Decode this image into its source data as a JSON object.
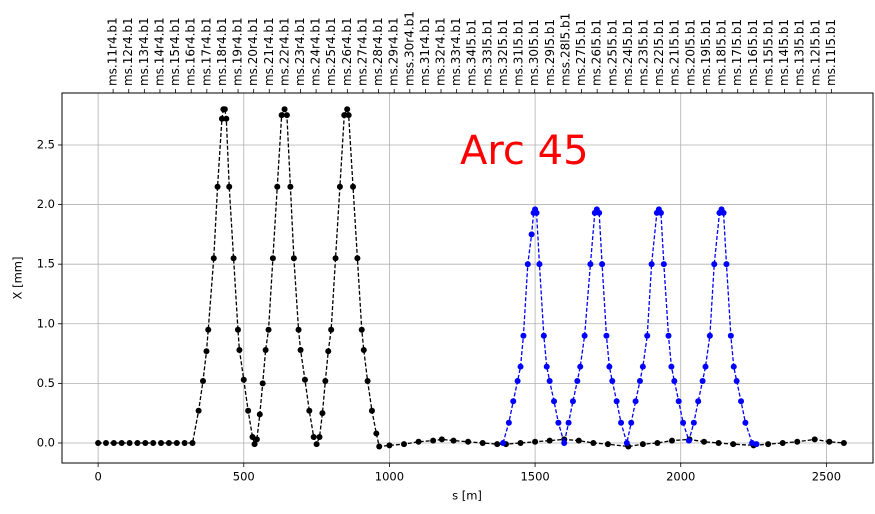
{
  "chart_data": {
    "type": "line",
    "xlabel": "s [m]",
    "ylabel": "X [mm]",
    "annotations": [
      {
        "text": "Arc 45",
        "color": "#ff0000"
      }
    ],
    "xlim": [
      -124,
      2660
    ],
    "ylim": [
      -0.168,
      2.936
    ],
    "grid": true,
    "xticks": [
      0,
      500,
      1000,
      1500,
      2000,
      2500
    ],
    "yticks": [
      {
        "value": 0,
        "label": "0.0"
      },
      {
        "value": 0.5,
        "label": "0.5"
      },
      {
        "value": 1,
        "label": "1.0"
      },
      {
        "value": 1.5,
        "label": "1.5"
      },
      {
        "value": 2,
        "label": "2.0"
      },
      {
        "value": 2.5,
        "label": "2.5"
      }
    ],
    "x2ticks": [
      {
        "value": 51.5,
        "label": "ms.11r4.b1"
      },
      {
        "value": 105.1,
        "label": "ms.12r4.b1"
      },
      {
        "value": 158.7,
        "label": "ms.13r4.b1"
      },
      {
        "value": 212.3,
        "label": "ms.14r4.b1"
      },
      {
        "value": 265.9,
        "label": "ms.15r4.b1"
      },
      {
        "value": 319.5,
        "label": "ms.16r4.b1"
      },
      {
        "value": 373.1,
        "label": "ms.17r4.b1"
      },
      {
        "value": 426.7,
        "label": "ms.18r4.b1"
      },
      {
        "value": 480.3,
        "label": "ms.19r4.b1"
      },
      {
        "value": 533.9,
        "label": "ms.20r4.b1"
      },
      {
        "value": 587.5,
        "label": "ms.21r4.b1"
      },
      {
        "value": 641.1,
        "label": "ms.22r4.b1"
      },
      {
        "value": 694.7,
        "label": "ms.23r4.b1"
      },
      {
        "value": 748.3,
        "label": "ms.24r4.b1"
      },
      {
        "value": 801.9,
        "label": "ms.25r4.b1"
      },
      {
        "value": 855.5,
        "label": "ms.26r4.b1"
      },
      {
        "value": 909.1,
        "label": "ms.27r4.b1"
      },
      {
        "value": 962.7,
        "label": "ms.28r4.b1"
      },
      {
        "value": 1016.3,
        "label": "ms.29r4.b1"
      },
      {
        "value": 1069.9,
        "label": "mss.30r4.b1"
      },
      {
        "value": 1123.5,
        "label": "ms.31r4.b1"
      },
      {
        "value": 1177.1,
        "label": "ms.32r4.b1"
      },
      {
        "value": 1230.7,
        "label": "ms.33r4.b1"
      },
      {
        "value": 1284.3,
        "label": "ms.34l5.b1"
      },
      {
        "value": 1337.9,
        "label": "ms.33l5.b1"
      },
      {
        "value": 1391.5,
        "label": "ms.32l5.b1"
      },
      {
        "value": 1445.1,
        "label": "ms.31l5.b1"
      },
      {
        "value": 1498.7,
        "label": "ms.30l5.b1"
      },
      {
        "value": 1552.3,
        "label": "ms.29l5.b1"
      },
      {
        "value": 1605.9,
        "label": "mss.28l5.b1"
      },
      {
        "value": 1659.5,
        "label": "ms.27l5.b1"
      },
      {
        "value": 1713.1,
        "label": "ms.26l5.b1"
      },
      {
        "value": 1766.7,
        "label": "ms.25l5.b1"
      },
      {
        "value": 1820.3,
        "label": "ms.24l5.b1"
      },
      {
        "value": 1873.9,
        "label": "ms.23l5.b1"
      },
      {
        "value": 1927.5,
        "label": "ms.22l5.b1"
      },
      {
        "value": 1981.1,
        "label": "ms.21l5.b1"
      },
      {
        "value": 2034.7,
        "label": "ms.20l5.b1"
      },
      {
        "value": 2088.3,
        "label": "ms.19l5.b1"
      },
      {
        "value": 2141.9,
        "label": "ms.18l5.b1"
      },
      {
        "value": 2195.5,
        "label": "ms.17l5.b1"
      },
      {
        "value": 2249.1,
        "label": "ms.16l5.b1"
      },
      {
        "value": 2302.7,
        "label": "ms.15l5.b1"
      },
      {
        "value": 2356.3,
        "label": "ms.14l5.b1"
      },
      {
        "value": 2409.9,
        "label": "ms.13l5.b1"
      },
      {
        "value": 2463.5,
        "label": "ms.12l5.b1"
      },
      {
        "value": 2517.1,
        "label": "ms.11l5.b1"
      }
    ],
    "series": [
      {
        "color": "#000000",
        "x": [
          0,
          27,
          54,
          81,
          108,
          135,
          162,
          189,
          216,
          243,
          270,
          297,
          324,
          345,
          360,
          372,
          378,
          397,
          410,
          425,
          430,
          435,
          440,
          450,
          465,
          480,
          485,
          500,
          515,
          530,
          537,
          545,
          555,
          565,
          575,
          585,
          600,
          615,
          630,
          640,
          648,
          660,
          672,
          688,
          695,
          710,
          725,
          740,
          750,
          760,
          770,
          780,
          790,
          800,
          815,
          830,
          845,
          855,
          860,
          875,
          890,
          905,
          912,
          925,
          940,
          955,
          965,
          1000,
          1050,
          1100,
          1150,
          1180,
          1220,
          1270,
          1320,
          1370,
          1400,
          1450,
          1500,
          1550,
          1600,
          1650,
          1700,
          1750,
          1820,
          1870,
          1920,
          1970,
          2030,
          2080,
          2130,
          2180,
          2250,
          2300,
          2350,
          2400,
          2460,
          2510,
          2560
        ],
        "values": [
          0,
          0,
          0,
          0,
          0,
          0,
          0,
          0,
          0,
          0,
          0,
          0,
          0,
          0.27,
          0.52,
          0.77,
          0.95,
          1.55,
          2.15,
          2.72,
          2.8,
          2.8,
          2.72,
          2.15,
          1.55,
          0.95,
          0.78,
          0.53,
          0.27,
          0.05,
          -0.01,
          0.03,
          0.24,
          0.5,
          0.78,
          0.95,
          1.55,
          2.15,
          2.75,
          2.8,
          2.75,
          2.15,
          1.55,
          0.95,
          0.78,
          0.53,
          0.27,
          0.05,
          -0.01,
          0.05,
          0.25,
          0.52,
          0.77,
          0.95,
          1.55,
          2.15,
          2.75,
          2.8,
          2.75,
          2.15,
          1.55,
          0.95,
          0.78,
          0.52,
          0.27,
          0.08,
          -0.03,
          -0.02,
          -0.01,
          0.01,
          0.02,
          0.03,
          0.02,
          0.01,
          0,
          -0.01,
          -0.01,
          0,
          0.01,
          0.02,
          0.03,
          0.02,
          0,
          -0.01,
          -0.03,
          -0.01,
          0,
          0.02,
          0.03,
          0.01,
          0,
          -0.01,
          -0.02,
          -0.01,
          0,
          0.01,
          0.03,
          0.01,
          0
        ]
      },
      {
        "color": "#0000ff",
        "x": [
          1390,
          1410,
          1425,
          1440,
          1450,
          1460,
          1475,
          1488,
          1495,
          1500,
          1505,
          1515,
          1530,
          1540,
          1550,
          1565,
          1580,
          1600,
          1615,
          1630,
          1645,
          1655,
          1670,
          1690,
          1705,
          1712,
          1720,
          1730,
          1745,
          1755,
          1765,
          1780,
          1795,
          1815,
          1830,
          1845,
          1860,
          1870,
          1885,
          1900,
          1918,
          1925,
          1932,
          1942,
          1958,
          1968,
          1978,
          1993,
          2008,
          2028,
          2045,
          2060,
          2075,
          2085,
          2100,
          2115,
          2133,
          2140,
          2147,
          2157,
          2172,
          2182,
          2192,
          2207,
          2222,
          2245,
          2260
        ],
        "values": [
          0,
          0.17,
          0.35,
          0.52,
          0.64,
          0.9,
          1.5,
          1.75,
          1.93,
          1.96,
          1.93,
          1.5,
          0.9,
          0.64,
          0.52,
          0.35,
          0.17,
          0,
          0.17,
          0.35,
          0.52,
          0.64,
          0.9,
          1.5,
          1.93,
          1.96,
          1.93,
          1.5,
          0.9,
          0.64,
          0.52,
          0.35,
          0.17,
          0,
          0.17,
          0.35,
          0.52,
          0.64,
          0.9,
          1.5,
          1.93,
          1.96,
          1.93,
          1.5,
          0.9,
          0.64,
          0.52,
          0.35,
          0.17,
          0.02,
          0.17,
          0.35,
          0.52,
          0.64,
          0.9,
          1.5,
          1.93,
          1.96,
          1.93,
          1.5,
          0.9,
          0.64,
          0.52,
          0.35,
          0.17,
          0,
          -0.01
        ]
      }
    ]
  }
}
